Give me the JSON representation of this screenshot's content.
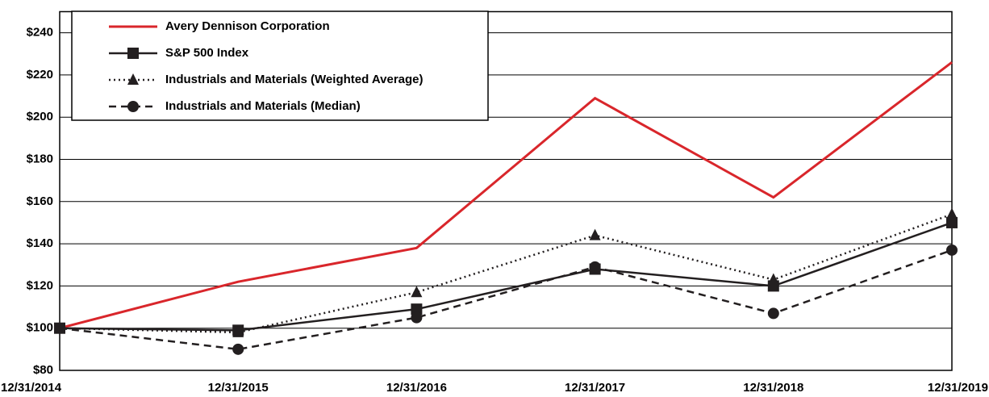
{
  "chart_data": {
    "type": "line",
    "categories": [
      "12/31/2014",
      "12/31/2015",
      "12/31/2016",
      "12/31/2017",
      "12/31/2018",
      "12/31/2019"
    ],
    "series": [
      {
        "name": "Avery Dennison Corporation",
        "color": "#d9262b",
        "line_style": "solid",
        "marker": "none",
        "values": [
          100,
          122,
          138,
          209,
          162,
          226
        ]
      },
      {
        "name": "S&P 500 Index",
        "color": "#231f20",
        "line_style": "solid",
        "marker": "square",
        "values": [
          100,
          99,
          109,
          128,
          120,
          150
        ]
      },
      {
        "name": "Industrials and Materials (Weighted Average)",
        "color": "#231f20",
        "line_style": "dotted",
        "marker": "triangle",
        "values": [
          100,
          98,
          117,
          144,
          123,
          154
        ]
      },
      {
        "name": "Industrials and Materials (Median)",
        "color": "#231f20",
        "line_style": "dashed",
        "marker": "circle",
        "values": [
          100,
          90,
          105,
          129,
          107,
          137
        ]
      }
    ],
    "ylim": [
      80,
      250
    ],
    "yticks": [
      {
        "value": 80,
        "label": "$80"
      },
      {
        "value": 100,
        "label": "$100"
      },
      {
        "value": 120,
        "label": "$120"
      },
      {
        "value": 140,
        "label": "$140"
      },
      {
        "value": 160,
        "label": "$160"
      },
      {
        "value": 180,
        "label": "$180"
      },
      {
        "value": 200,
        "label": "$200"
      },
      {
        "value": 220,
        "label": "$220"
      },
      {
        "value": 240,
        "label": "$240"
      }
    ],
    "grid": true,
    "legend": "upper left"
  }
}
